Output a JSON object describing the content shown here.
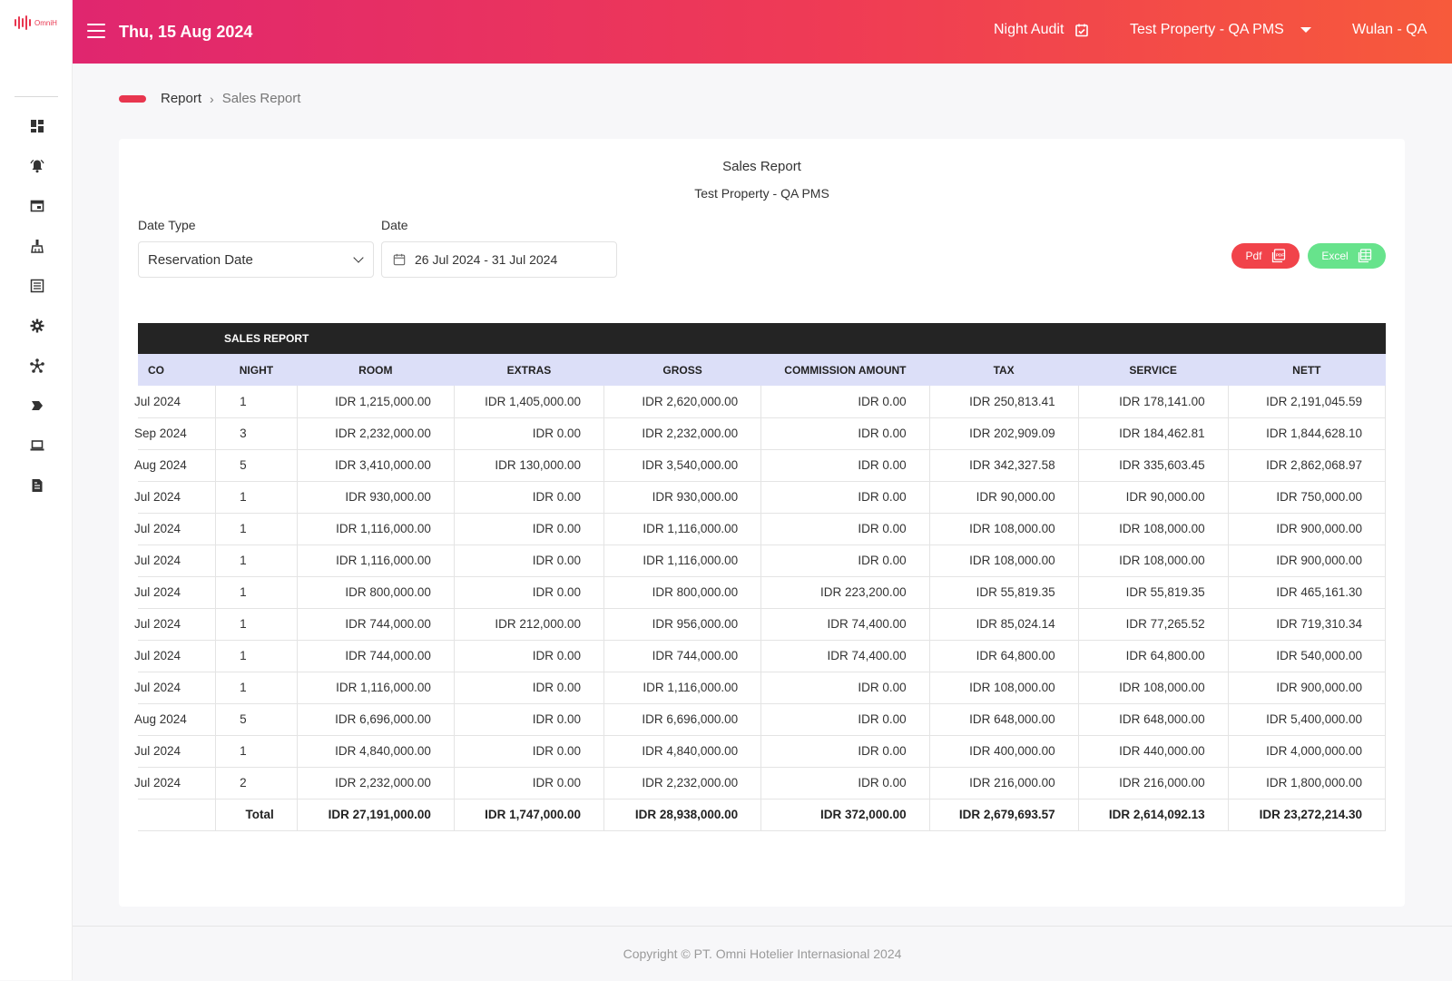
{
  "app": {
    "logo_text": "OmniH"
  },
  "header": {
    "date": "Thu, 15 Aug 2024",
    "night_audit_label": "Night Audit",
    "property": "Test Property - QA PMS",
    "user": "Wulan - QA"
  },
  "sidebar": {
    "icons": [
      "dashboard-icon",
      "notification-bell-icon",
      "window-icon",
      "housekeeping-icon",
      "list-icon",
      "settings-icon",
      "network-icon",
      "tag-icon",
      "laptop-icon",
      "report-document-icon"
    ]
  },
  "breadcrumb": {
    "parent": "Report",
    "current": "Sales Report"
  },
  "report": {
    "title": "Sales Report",
    "subtitle": "Test Property - QA PMS"
  },
  "filters": {
    "date_type_label": "Date Type",
    "date_type_value": "Reservation Date",
    "date_label": "Date",
    "date_value": "26 Jul 2024 - 31 Jul 2024"
  },
  "buttons": {
    "pdf": "Pdf",
    "excel": "Excel"
  },
  "table": {
    "band_title": "SALES REPORT",
    "columns": [
      "CO",
      "NIGHT",
      "ROOM",
      "EXTRAS",
      "GROSS",
      "COMMISSION AMOUNT",
      "TAX",
      "SERVICE",
      "NETT"
    ],
    "rows": [
      [
        "Jul 2024",
        "1",
        "IDR 1,215,000.00",
        "IDR 1,405,000.00",
        "IDR 2,620,000.00",
        "IDR 0.00",
        "IDR 250,813.41",
        "IDR 178,141.00",
        "IDR 2,191,045.59"
      ],
      [
        "Sep 2024",
        "3",
        "IDR 2,232,000.00",
        "IDR 0.00",
        "IDR 2,232,000.00",
        "IDR 0.00",
        "IDR 202,909.09",
        "IDR 184,462.81",
        "IDR 1,844,628.10"
      ],
      [
        "Aug 2024",
        "5",
        "IDR 3,410,000.00",
        "IDR 130,000.00",
        "IDR 3,540,000.00",
        "IDR 0.00",
        "IDR 342,327.58",
        "IDR 335,603.45",
        "IDR 2,862,068.97"
      ],
      [
        "Jul 2024",
        "1",
        "IDR 930,000.00",
        "IDR 0.00",
        "IDR 930,000.00",
        "IDR 0.00",
        "IDR 90,000.00",
        "IDR 90,000.00",
        "IDR 750,000.00"
      ],
      [
        "Jul 2024",
        "1",
        "IDR 1,116,000.00",
        "IDR 0.00",
        "IDR 1,116,000.00",
        "IDR 0.00",
        "IDR 108,000.00",
        "IDR 108,000.00",
        "IDR 900,000.00"
      ],
      [
        "Jul 2024",
        "1",
        "IDR 1,116,000.00",
        "IDR 0.00",
        "IDR 1,116,000.00",
        "IDR 0.00",
        "IDR 108,000.00",
        "IDR 108,000.00",
        "IDR 900,000.00"
      ],
      [
        "Jul 2024",
        "1",
        "IDR 800,000.00",
        "IDR 0.00",
        "IDR 800,000.00",
        "IDR 223,200.00",
        "IDR 55,819.35",
        "IDR 55,819.35",
        "IDR 465,161.30"
      ],
      [
        "Jul 2024",
        "1",
        "IDR 744,000.00",
        "IDR 212,000.00",
        "IDR 956,000.00",
        "IDR 74,400.00",
        "IDR 85,024.14",
        "IDR 77,265.52",
        "IDR 719,310.34"
      ],
      [
        "Jul 2024",
        "1",
        "IDR 744,000.00",
        "IDR 0.00",
        "IDR 744,000.00",
        "IDR 74,400.00",
        "IDR 64,800.00",
        "IDR 64,800.00",
        "IDR 540,000.00"
      ],
      [
        "Jul 2024",
        "1",
        "IDR 1,116,000.00",
        "IDR 0.00",
        "IDR 1,116,000.00",
        "IDR 0.00",
        "IDR 108,000.00",
        "IDR 108,000.00",
        "IDR 900,000.00"
      ],
      [
        "Aug 2024",
        "5",
        "IDR 6,696,000.00",
        "IDR 0.00",
        "IDR 6,696,000.00",
        "IDR 0.00",
        "IDR 648,000.00",
        "IDR 648,000.00",
        "IDR 5,400,000.00"
      ],
      [
        "Jul 2024",
        "1",
        "IDR 4,840,000.00",
        "IDR 0.00",
        "IDR 4,840,000.00",
        "IDR 0.00",
        "IDR 400,000.00",
        "IDR 440,000.00",
        "IDR 4,000,000.00"
      ],
      [
        "Jul 2024",
        "2",
        "IDR 2,232,000.00",
        "IDR 0.00",
        "IDR 2,232,000.00",
        "IDR 0.00",
        "IDR 216,000.00",
        "IDR 216,000.00",
        "IDR 1,800,000.00"
      ]
    ],
    "total": [
      "",
      "Total",
      "IDR 27,191,000.00",
      "IDR 1,747,000.00",
      "IDR 28,938,000.00",
      "IDR 372,000.00",
      "IDR 2,679,693.57",
      "IDR 2,614,092.13",
      "IDR 23,272,214.30"
    ]
  },
  "footer": {
    "copyright": "Copyright © PT. Omni Hotelier Internasional 2024"
  },
  "colors": {
    "accent": "#e8364f",
    "header_gradient_start": "#e0266f",
    "header_gradient_end": "#f75a3b",
    "pdf_button": "#f1434a",
    "excel_button": "#67e38c",
    "table_band": "#242424",
    "table_header": "#dcdff8"
  }
}
